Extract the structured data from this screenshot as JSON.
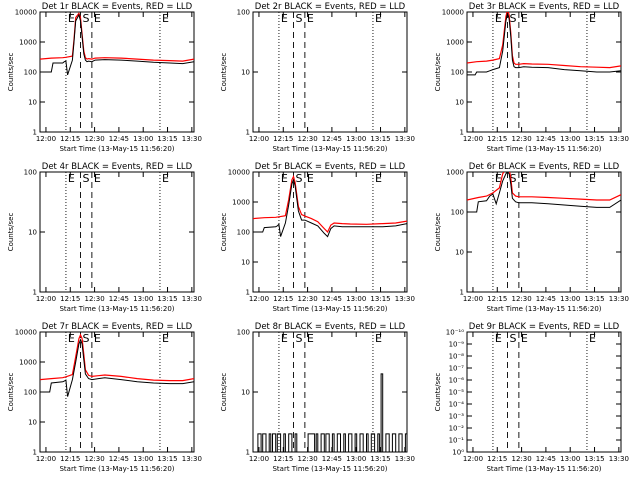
{
  "chart_data": {
    "type": "line",
    "common": {
      "xlabel": "Start Time (13-May-15 11:56:20)",
      "ylabel": "Counts/sec",
      "x_range_minutes": [
        0,
        95
      ],
      "x_ticks_minutes": [
        3.67,
        18.67,
        33.67,
        48.67,
        63.67,
        78.67,
        93.67
      ],
      "x_tick_labels": [
        "12:00",
        "12:15",
        "12:30",
        "12:45",
        "13:00",
        "13:15",
        "13:30"
      ],
      "series_names": [
        "Events",
        "LLD"
      ],
      "series_colors": [
        "#000000",
        "#ff0000"
      ],
      "markers": [
        {
          "label": "E",
          "minute": 16,
          "style": "dotted"
        },
        {
          "label": "S",
          "minute": 25,
          "style": "dashed"
        },
        {
          "label": "E",
          "minute": 32,
          "style": "dashed"
        },
        {
          "label": "E",
          "minute": 74,
          "style": "dotted"
        }
      ]
    },
    "panels": [
      {
        "title": "Det 1r BLACK = Events, RED = LLD",
        "y_log_range": [
          1,
          10000
        ],
        "y_tick_labels": [
          "1",
          "10",
          "100",
          "1000",
          "10000"
        ],
        "marker_labels": [
          "E",
          "S",
          "E",
          "E"
        ],
        "series": [
          {
            "name": "Events",
            "x": [
              0,
              7,
              8,
              14,
              15,
              16,
              17,
              20,
              21,
              22,
              24,
              25,
              26,
              27,
              28,
              29,
              30,
              32,
              34,
              40,
              50,
              60,
              70,
              80,
              88,
              95
            ],
            "y": [
              100,
              100,
              200,
              200,
              220,
              230,
              80,
              250,
              1000,
              5000,
              8000,
              5000,
              1500,
              400,
              250,
              220,
              230,
              220,
              250,
              260,
              250,
              230,
              210,
              200,
              190,
              220
            ]
          },
          {
            "name": "LLD",
            "x": [
              0,
              7,
              14,
              16,
              20,
              21,
              22,
              24,
              25,
              26,
              27,
              28,
              29,
              30,
              32,
              34,
              40,
              50,
              60,
              70,
              80,
              88,
              95
            ],
            "y": [
              270,
              290,
              300,
              310,
              340,
              1200,
              6500,
              9000,
              6500,
              1800,
              500,
              300,
              270,
              280,
              270,
              290,
              300,
              290,
              270,
              250,
              240,
              230,
              270
            ]
          }
        ]
      },
      {
        "title": "Det 2r BLACK = Events, RED = LLD",
        "y_log_range": [
          1,
          100
        ],
        "y_tick_labels": [
          "1",
          "10",
          "100"
        ],
        "marker_labels": [
          "E",
          "S",
          "E",
          "E"
        ],
        "series": []
      },
      {
        "title": "Det 3r BLACK = Events, RED = LLD",
        "y_log_range": [
          1,
          10000
        ],
        "y_tick_labels": [
          "1",
          "10",
          "100",
          "1000",
          "10000"
        ],
        "marker_labels": [
          "E",
          "S",
          "E",
          "E"
        ],
        "series": [
          {
            "name": "Events",
            "x": [
              0,
              5,
              6,
              12,
              14,
              16,
              18,
              20,
              22,
              24,
              25,
              26,
              27,
              28,
              29,
              30,
              32,
              35,
              40,
              50,
              60,
              70,
              80,
              88,
              95
            ],
            "y": [
              80,
              80,
              100,
              100,
              110,
              120,
              130,
              140,
              500,
              5000,
              9000,
              6000,
              1500,
              250,
              150,
              140,
              140,
              150,
              145,
              140,
              120,
              110,
              100,
              100,
              110
            ]
          },
          {
            "name": "LLD",
            "x": [
              0,
              6,
              12,
              16,
              20,
              22,
              24,
              25,
              26,
              27,
              28,
              29,
              30,
              32,
              35,
              40,
              50,
              60,
              70,
              80,
              88,
              95
            ],
            "y": [
              200,
              220,
              230,
              250,
              280,
              800,
              7000,
              12000,
              8000,
              2000,
              350,
              200,
              180,
              180,
              190,
              185,
              180,
              165,
              150,
              145,
              140,
              160
            ]
          }
        ]
      },
      {
        "title": "Det 4r BLACK = Events, RED = LLD",
        "y_log_range": [
          1,
          100
        ],
        "y_tick_labels": [
          "1",
          "10",
          "100"
        ],
        "marker_labels": [
          "E",
          "S",
          "E",
          "E"
        ],
        "series": []
      },
      {
        "title": "Det 5r BLACK = Events, RED = LLD",
        "y_log_range": [
          1,
          10000
        ],
        "y_tick_labels": [
          "1",
          "10",
          "100",
          "1000",
          "10000"
        ],
        "marker_labels": [
          "E",
          "S",
          "E",
          "E"
        ],
        "series": [
          {
            "name": "Events",
            "x": [
              0,
              6,
              7,
              14,
              15,
              16,
              17,
              20,
              22,
              24,
              25,
              26,
              28,
              30,
              32,
              36,
              40,
              44,
              46,
              48,
              50,
              55,
              60,
              70,
              80,
              88,
              95
            ],
            "y": [
              100,
              100,
              140,
              150,
              160,
              180,
              70,
              200,
              800,
              4000,
              5500,
              3500,
              500,
              250,
              250,
              200,
              160,
              90,
              70,
              130,
              160,
              150,
              150,
              150,
              150,
              160,
              190
            ]
          },
          {
            "name": "LLD",
            "x": [
              0,
              7,
              14,
              16,
              20,
              22,
              24,
              25,
              26,
              28,
              30,
              32,
              36,
              40,
              44,
              46,
              48,
              50,
              55,
              60,
              70,
              80,
              88,
              95
            ],
            "y": [
              280,
              300,
              310,
              320,
              350,
              1200,
              5500,
              7000,
              4500,
              700,
              380,
              340,
              280,
              220,
              130,
              100,
              170,
              200,
              190,
              185,
              180,
              190,
              200,
              230
            ]
          }
        ]
      },
      {
        "title": "Det 6r BLACK = Events, RED = LLD",
        "y_log_range": [
          1,
          1000
        ],
        "y_tick_labels": [
          "1",
          "10",
          "100",
          "1000"
        ],
        "marker_labels": [
          "E",
          "S",
          "E",
          "E"
        ],
        "series": [
          {
            "name": "Events",
            "x": [
              0,
              6,
              7,
              12,
              14,
              16,
              18,
              20,
              22,
              24,
              25,
              26,
              27,
              28,
              30,
              32,
              40,
              50,
              60,
              70,
              80,
              88,
              95
            ],
            "y": [
              100,
              100,
              180,
              190,
              250,
              280,
              160,
              300,
              600,
              900,
              1000,
              900,
              500,
              220,
              180,
              170,
              170,
              160,
              150,
              140,
              130,
              130,
              200
            ]
          },
          {
            "name": "LLD",
            "x": [
              0,
              7,
              12,
              16,
              20,
              22,
              24,
              25,
              26,
              27,
              28,
              30,
              32,
              40,
              50,
              60,
              70,
              80,
              88,
              95
            ],
            "y": [
              200,
              230,
              250,
              300,
              400,
              900,
              1200,
              1300,
              1200,
              700,
              300,
              250,
              240,
              240,
              230,
              220,
              210,
              200,
              200,
              270
            ]
          }
        ]
      },
      {
        "title": "Det 7r BLACK = Events, RED = LLD",
        "y_log_range": [
          1,
          10000
        ],
        "y_tick_labels": [
          "1",
          "10",
          "100",
          "1000",
          "10000"
        ],
        "marker_labels": [
          "E",
          "S",
          "E",
          "E"
        ],
        "series": [
          {
            "name": "Events",
            "x": [
              0,
              6,
              7,
              14,
              15,
              16,
              17,
              20,
              22,
              24,
              25,
              26,
              27,
              28,
              30,
              32,
              36,
              40,
              50,
              60,
              70,
              80,
              88,
              95
            ],
            "y": [
              100,
              100,
              200,
              220,
              230,
              250,
              70,
              260,
              1000,
              4000,
              5500,
              4000,
              1200,
              400,
              280,
              260,
              280,
              300,
              260,
              220,
              200,
              190,
              190,
              220
            ]
          },
          {
            "name": "LLD",
            "x": [
              0,
              7,
              14,
              16,
              20,
              22,
              24,
              25,
              26,
              27,
              28,
              30,
              32,
              36,
              40,
              50,
              60,
              70,
              80,
              88,
              95
            ],
            "y": [
              260,
              280,
              300,
              320,
              380,
              1500,
              6000,
              8000,
              6000,
              1800,
              550,
              360,
              330,
              350,
              370,
              330,
              280,
              250,
              240,
              240,
              280
            ]
          }
        ]
      },
      {
        "title": "Det 8r BLACK = Events, RED = LLD",
        "y_log_range": [
          1,
          100
        ],
        "y_tick_labels": [
          "1",
          "10",
          "100"
        ],
        "marker_labels": [
          "E",
          "S",
          "E",
          "E"
        ],
        "series": [
          {
            "name": "Events",
            "x": [
              0,
              1,
              3,
              5,
              6,
              8,
              10,
              11,
              12,
              14,
              15,
              17,
              19,
              20,
              22,
              24,
              26,
              27,
              28,
              30,
              34,
              38,
              39,
              40,
              42,
              44,
              45,
              47,
              49,
              50,
              52,
              54,
              56,
              57,
              59,
              61,
              63,
              64,
              66,
              68,
              70,
              71,
              73,
              75,
              77,
              78,
              79,
              80,
              82,
              84,
              86,
              88,
              90,
              92,
              94,
              95
            ],
            "y": [
              1,
              1,
              2,
              1,
              2,
              1,
              2,
              1,
              2,
              1,
              2,
              1,
              2,
              1,
              2,
              1,
              2,
              1,
              1,
              1,
              2,
              1,
              2,
              1,
              2,
              1,
              2,
              1,
              2,
              1,
              2,
              1,
              2,
              1,
              2,
              1,
              2,
              1,
              2,
              1,
              2,
              1,
              2,
              1,
              2,
              1,
              20,
              1,
              2,
              1,
              2,
              1,
              2,
              1,
              2,
              1
            ]
          }
        ]
      },
      {
        "title": "Det 9r BLACK = Events, RED = LLD",
        "y_log_range": [
          1,
          1e-10
        ],
        "y_tick_labels": [
          "10⁰",
          "10⁻¹",
          "10⁻²",
          "10⁻³",
          "10⁻⁴",
          "10⁻⁵",
          "10⁻⁶",
          "10⁻⁷",
          "10⁻⁸",
          "10⁻⁹",
          "10⁻¹⁰"
        ],
        "marker_labels": [
          "E",
          "S",
          "E",
          "E"
        ],
        "series": []
      }
    ]
  }
}
